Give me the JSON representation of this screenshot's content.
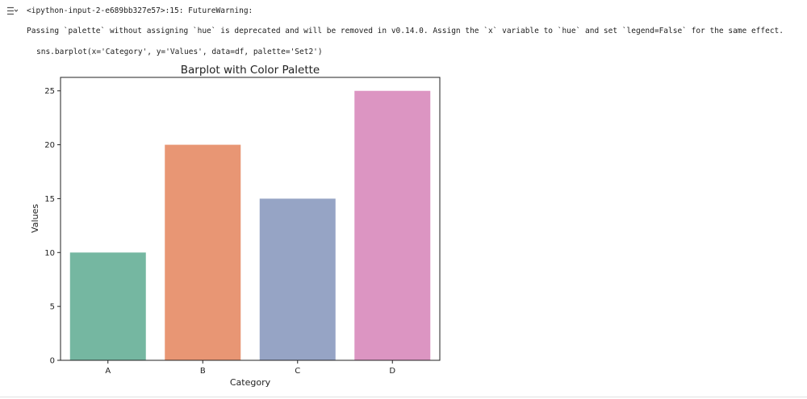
{
  "output": {
    "icon": "output-toggle-icon",
    "warning_header": "<ipython-input-2-e689bb327e57>:15: FutureWarning:",
    "warning_message": "Passing `palette` without assigning `hue` is deprecated and will be removed in v0.14.0. Assign the `x` variable to `hue` and set `legend=False` for the same effect.",
    "warning_code": "sns.barplot(x='Category', y='Values', data=df, palette='Set2')"
  },
  "chart_data": {
    "type": "bar",
    "title": "Barplot with Color Palette",
    "xlabel": "Category",
    "ylabel": "Values",
    "categories": [
      "A",
      "B",
      "C",
      "D"
    ],
    "values": [
      10,
      20,
      15,
      25
    ],
    "colors": [
      "#75b7a1",
      "#e89674",
      "#96a4c5",
      "#dc95c2"
    ],
    "ylim": [
      0,
      26.25
    ],
    "yticks": [
      0,
      5,
      10,
      15,
      20,
      25
    ],
    "grid": false
  }
}
